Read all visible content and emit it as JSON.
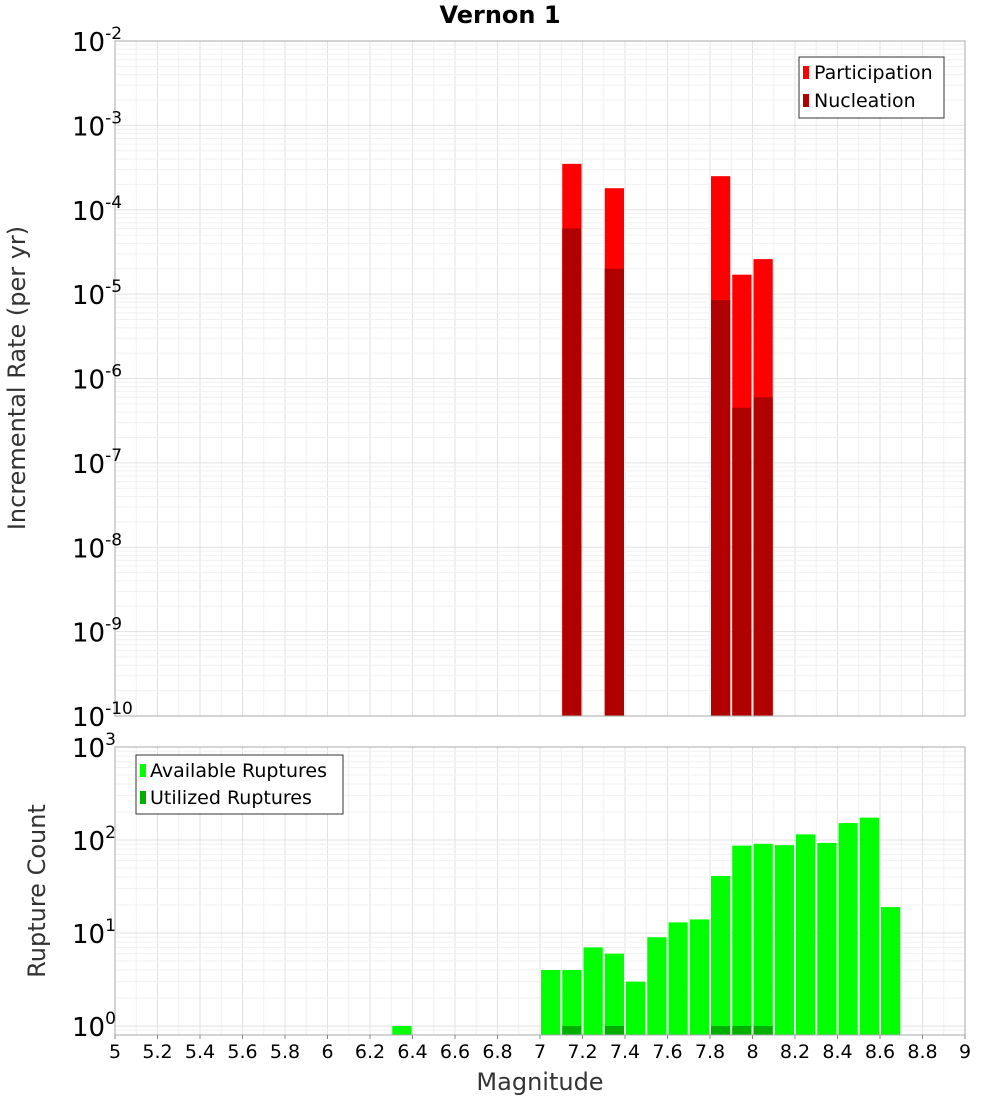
{
  "chart_data": [
    {
      "type": "bar",
      "title": "Vernon 1",
      "xlabel": "Magnitude",
      "ylabel": "Incremental Rate (per yr)",
      "yscale": "log",
      "xlim": [
        5,
        9
      ],
      "ylim": [
        1e-10,
        0.01
      ],
      "bin_width": 0.1,
      "legend": {
        "position": "top-right",
        "entries": [
          "Participation",
          "Nucleation"
        ]
      },
      "series": [
        {
          "name": "Participation",
          "color": "#ff0000",
          "x": [
            7.15,
            7.35,
            7.85,
            7.95,
            8.05
          ],
          "values": [
            0.00035,
            0.00018,
            0.00025,
            1.7e-05,
            2.6e-05
          ]
        },
        {
          "name": "Nucleation",
          "color": "#b00000",
          "x": [
            7.15,
            7.35,
            7.85,
            7.95,
            8.05
          ],
          "values": [
            6e-05,
            2e-05,
            8.5e-06,
            4.5e-07,
            6e-07
          ]
        }
      ],
      "y_ticks": [
        {
          "base": "10",
          "exp": "-10"
        },
        {
          "base": "10",
          "exp": "-9"
        },
        {
          "base": "10",
          "exp": "-8"
        },
        {
          "base": "10",
          "exp": "-7"
        },
        {
          "base": "10",
          "exp": "-6"
        },
        {
          "base": "10",
          "exp": "-5"
        },
        {
          "base": "10",
          "exp": "-4"
        },
        {
          "base": "10",
          "exp": "-3"
        },
        {
          "base": "10",
          "exp": "-2"
        }
      ]
    },
    {
      "type": "bar",
      "title": "",
      "xlabel": "Magnitude",
      "ylabel": "Rupture Count",
      "yscale": "log",
      "xlim": [
        5,
        9
      ],
      "ylim": [
        0.8,
        1000
      ],
      "bin_width": 0.1,
      "legend": {
        "position": "top-left",
        "entries": [
          "Available Ruptures",
          "Utilized Ruptures"
        ]
      },
      "series": [
        {
          "name": "Available Ruptures",
          "color": "#00ff00",
          "x": [
            6.35,
            7.05,
            7.15,
            7.25,
            7.35,
            7.45,
            7.55,
            7.65,
            7.75,
            7.85,
            7.95,
            8.05,
            8.15,
            8.25,
            8.35,
            8.45,
            8.55,
            8.65
          ],
          "values": [
            1,
            4,
            4,
            7,
            6,
            3,
            9,
            13,
            14,
            41,
            87,
            91,
            88,
            115,
            93,
            152,
            174,
            19
          ]
        },
        {
          "name": "Utilized Ruptures",
          "color": "#00b000",
          "x": [
            7.15,
            7.35,
            7.85,
            7.95,
            8.05
          ],
          "values": [
            1,
            1,
            1,
            1,
            1
          ]
        }
      ],
      "y_ticks": [
        {
          "base": "10",
          "exp": "0"
        },
        {
          "base": "10",
          "exp": "1"
        },
        {
          "base": "10",
          "exp": "2"
        },
        {
          "base": "10",
          "exp": "3"
        }
      ]
    }
  ],
  "x_ticks": [
    "5",
    "5.2",
    "5.4",
    "5.6",
    "5.8",
    "6",
    "6.2",
    "6.4",
    "6.6",
    "6.8",
    "7",
    "7.2",
    "7.4",
    "7.6",
    "7.8",
    "8",
    "8.2",
    "8.4",
    "8.6",
    "8.8",
    "9"
  ]
}
